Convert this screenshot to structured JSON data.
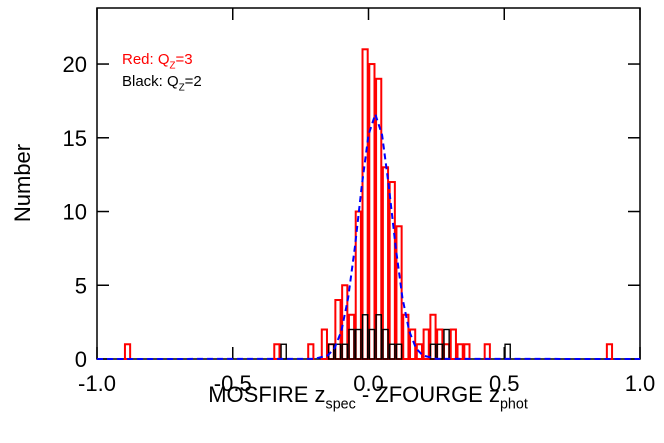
{
  "chart_data": {
    "type": "histogram",
    "xlabel": [
      "MOSFIRE z",
      "spec",
      " -  ZFOURGE z",
      "phot"
    ],
    "ylabel": "Number",
    "bins": [
      -0.9,
      -0.875,
      -0.85,
      -0.825,
      -0.8,
      -0.775,
      -0.75,
      -0.725,
      -0.7,
      -0.675,
      -0.65,
      -0.625,
      -0.6,
      -0.575,
      -0.55,
      -0.525,
      -0.5,
      -0.475,
      -0.45,
      -0.425,
      -0.4,
      -0.375,
      -0.35,
      -0.325,
      -0.3,
      -0.275,
      -0.25,
      -0.225,
      -0.2,
      -0.175,
      -0.15,
      -0.125,
      -0.1,
      -0.075,
      -0.05,
      -0.025,
      0,
      0.025,
      0.05,
      0.075,
      0.1,
      0.125,
      0.15,
      0.175,
      0.2,
      0.225,
      0.25,
      0.275,
      0.3,
      0.325,
      0.35,
      0.375,
      0.4,
      0.425,
      0.45,
      0.475,
      0.5,
      0.525,
      0.55,
      0.575,
      0.6,
      0.625,
      0.65,
      0.675,
      0.7,
      0.725,
      0.75,
      0.775,
      0.8,
      0.825,
      0.85,
      0.875,
      0.9
    ],
    "series": [
      {
        "name": [
          "Red: Q",
          "Z",
          "=3"
        ],
        "color": "#ff0000",
        "values": [
          1,
          0,
          0,
          0,
          0,
          0,
          0,
          0,
          0,
          0,
          0,
          0,
          0,
          0,
          0,
          0,
          0,
          0,
          0,
          0,
          0,
          0,
          1,
          0,
          0,
          0,
          0,
          1,
          0,
          2,
          1,
          4,
          5,
          3,
          10,
          21,
          20,
          19,
          13,
          12,
          9,
          3,
          2,
          1,
          2,
          3,
          2,
          1,
          2,
          1,
          1,
          0,
          0,
          1,
          0,
          0,
          0,
          0,
          0,
          0,
          0,
          0,
          0,
          0,
          0,
          0,
          0,
          0,
          0,
          0,
          0,
          1
        ]
      },
      {
        "name": [
          "Black: Q",
          "Z",
          "=2"
        ],
        "color": "#000000",
        "values": [
          0,
          0,
          0,
          0,
          0,
          0,
          0,
          0,
          0,
          0,
          0,
          0,
          0,
          0,
          0,
          0,
          0,
          0,
          0,
          0,
          0,
          0,
          0,
          1,
          0,
          0,
          0,
          0,
          0,
          0,
          1,
          1,
          1,
          2,
          2,
          3,
          2,
          3,
          2,
          1,
          1,
          0,
          0,
          0,
          0,
          1,
          1,
          2,
          0,
          0,
          0,
          0,
          0,
          0,
          0,
          0,
          1,
          0,
          0,
          0,
          0,
          0,
          0,
          0,
          0,
          0,
          0,
          0,
          0,
          0,
          0,
          0
        ]
      }
    ],
    "fit": {
      "type": "line",
      "color": "#0000ff",
      "dashed": true,
      "x": [
        -1,
        -0.2,
        -0.15,
        -0.125,
        -0.1,
        -0.075,
        -0.05,
        -0.025,
        0,
        0.025,
        0.05,
        0.075,
        0.1,
        0.125,
        0.15,
        0.175,
        0.2,
        0.25,
        1
      ],
      "values": [
        0,
        0.01,
        0.24,
        0.73,
        1.89,
        4.14,
        7.6,
        11.7,
        15.2,
        16.6,
        15.2,
        11.7,
        7.6,
        4.14,
        1.89,
        0.73,
        0.24,
        0.01,
        0
      ]
    },
    "xlim": [
      -1,
      1
    ],
    "ylim": [
      0,
      23.8
    ],
    "xticks": [
      {
        "value": -1,
        "label": "-1.0"
      },
      {
        "value": -0.5,
        "label": "-0.5"
      },
      {
        "value": 0,
        "label": "0.0"
      },
      0.5,
      {
        "value": 1,
        "label": "1.0"
      }
    ],
    "yticks": [
      0,
      5,
      10,
      15,
      20
    ]
  }
}
